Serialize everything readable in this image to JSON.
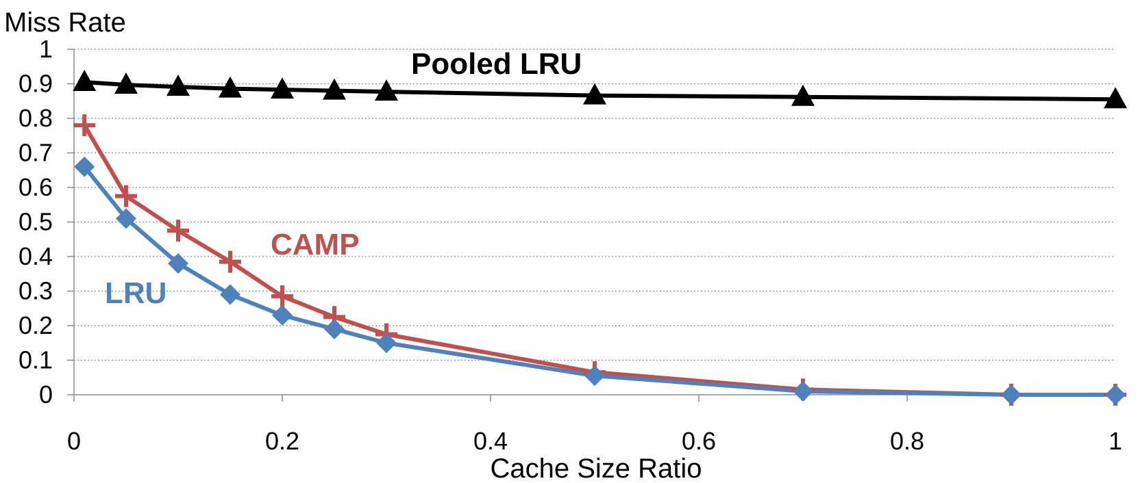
{
  "chart_data": {
    "type": "line",
    "ylabel": "Miss Rate",
    "xlabel": "Cache Size Ratio",
    "xlim": [
      0,
      1
    ],
    "ylim": [
      0,
      1
    ],
    "x_ticks": [
      "0",
      "0.2",
      "0.4",
      "0.6",
      "0.8",
      "1"
    ],
    "y_ticks": [
      "0",
      "0.1",
      "0.2",
      "0.3",
      "0.4",
      "0.5",
      "0.6",
      "0.7",
      "0.8",
      "0.9",
      "1"
    ],
    "grid": "horizontal dotted",
    "x": [
      0.01,
      0.05,
      0.1,
      0.15,
      0.2,
      0.25,
      0.3,
      0.5,
      0.7,
      0.9,
      1.0
    ],
    "series": [
      {
        "name": "Pooled LRU",
        "color": "#000000",
        "marker": "triangle",
        "x": [
          0.01,
          0.05,
          0.1,
          0.15,
          0.2,
          0.25,
          0.3,
          0.5,
          0.7,
          1.0
        ],
        "values": [
          0.905,
          0.897,
          0.891,
          0.886,
          0.883,
          0.88,
          0.877,
          0.866,
          0.862,
          0.855
        ]
      },
      {
        "name": "CAMP",
        "color": "#C0504D",
        "marker": "plus",
        "x": [
          0.01,
          0.05,
          0.1,
          0.15,
          0.2,
          0.25,
          0.3,
          0.5,
          0.7,
          0.9,
          1.0
        ],
        "values": [
          0.78,
          0.575,
          0.475,
          0.385,
          0.285,
          0.225,
          0.175,
          0.065,
          0.015,
          0.0,
          0.0
        ]
      },
      {
        "name": "LRU",
        "color": "#4F81BD",
        "marker": "diamond",
        "x": [
          0.01,
          0.05,
          0.1,
          0.15,
          0.2,
          0.25,
          0.3,
          0.5,
          0.7,
          0.9,
          1.0
        ],
        "values": [
          0.66,
          0.51,
          0.38,
          0.29,
          0.23,
          0.19,
          0.15,
          0.055,
          0.01,
          0.0,
          0.0
        ]
      }
    ]
  }
}
